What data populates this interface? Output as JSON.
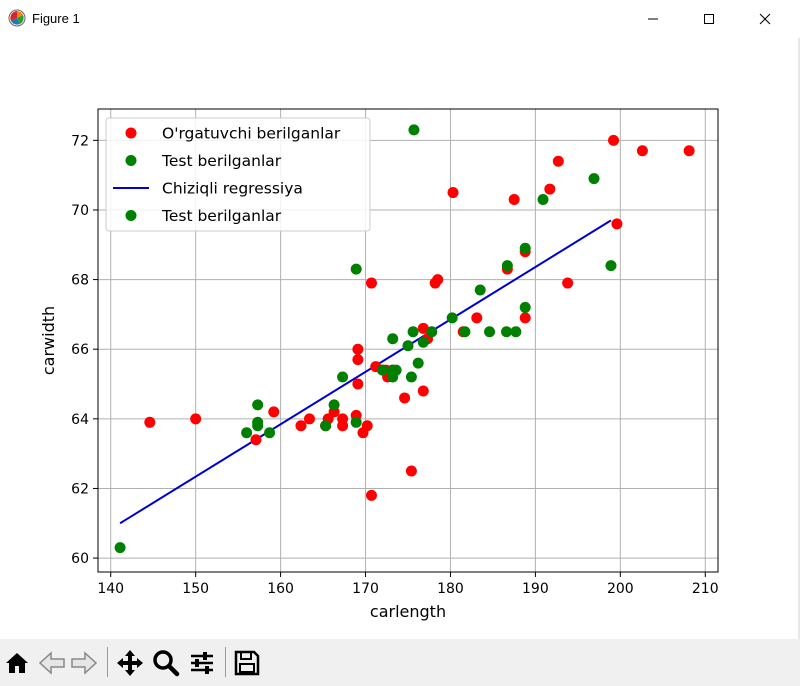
{
  "window": {
    "title": "Figure 1",
    "controls": {
      "minimize": "minimize-icon",
      "maximize": "maximize-icon",
      "close": "close-icon"
    }
  },
  "toolbar": {
    "buttons": [
      "home-icon",
      "back-icon",
      "forward-icon",
      "pan-icon",
      "zoom-icon",
      "configure-subplots-icon",
      "save-icon"
    ]
  },
  "chart_data": {
    "type": "scatter",
    "xlabel": "carlength",
    "ylabel": "carwidth",
    "xlim": [
      138.5,
      211.5
    ],
    "ylim": [
      59.6,
      72.9
    ],
    "xticks": [
      140,
      150,
      160,
      170,
      180,
      190,
      200,
      210
    ],
    "yticks": [
      60,
      62,
      64,
      66,
      68,
      70,
      72
    ],
    "grid": true,
    "legend_position": "top-left",
    "legend": [
      {
        "label": "O'rgatuvchi berilganlar",
        "kind": "marker",
        "color": "#ff0000"
      },
      {
        "label": "Test berilganlar",
        "kind": "marker",
        "color": "#008000"
      },
      {
        "label": "Chiziqli regressiya",
        "kind": "line",
        "color": "#0000cd"
      },
      {
        "label": "Test berilganlar",
        "kind": "marker",
        "color": "#008000"
      }
    ],
    "series": [
      {
        "name": "O'rgatuvchi berilganlar",
        "color": "#ff0000",
        "points": [
          [
            144.6,
            63.9
          ],
          [
            150.0,
            64.0
          ],
          [
            157.1,
            63.4
          ],
          [
            159.2,
            64.2
          ],
          [
            162.4,
            63.8
          ],
          [
            163.4,
            64.0
          ],
          [
            165.3,
            63.8
          ],
          [
            165.6,
            64.0
          ],
          [
            166.3,
            64.2
          ],
          [
            167.3,
            64.0
          ],
          [
            167.3,
            63.8
          ],
          [
            168.9,
            64.1
          ],
          [
            169.1,
            65.0
          ],
          [
            169.1,
            65.7
          ],
          [
            169.1,
            66.0
          ],
          [
            169.7,
            63.6
          ],
          [
            170.2,
            63.8
          ],
          [
            170.7,
            61.8
          ],
          [
            170.7,
            67.9
          ],
          [
            171.2,
            65.5
          ],
          [
            172.0,
            65.4
          ],
          [
            172.4,
            65.4
          ],
          [
            172.6,
            65.2
          ],
          [
            173.2,
            65.4
          ],
          [
            174.6,
            64.6
          ],
          [
            175.4,
            62.5
          ],
          [
            176.8,
            66.6
          ],
          [
            176.8,
            64.8
          ],
          [
            177.3,
            66.3
          ],
          [
            178.2,
            67.9
          ],
          [
            178.5,
            68.0
          ],
          [
            180.3,
            70.5
          ],
          [
            181.5,
            66.5
          ],
          [
            183.1,
            66.9
          ],
          [
            186.7,
            68.3
          ],
          [
            187.5,
            70.3
          ],
          [
            188.8,
            68.8
          ],
          [
            188.8,
            66.9
          ],
          [
            191.7,
            70.6
          ],
          [
            192.7,
            71.4
          ],
          [
            193.8,
            67.9
          ],
          [
            199.2,
            72.0
          ],
          [
            199.6,
            69.6
          ],
          [
            202.6,
            71.7
          ],
          [
            208.1,
            71.7
          ]
        ]
      },
      {
        "name": "Test berilganlar",
        "color": "#008000",
        "points": [
          [
            141.1,
            60.3
          ],
          [
            156.0,
            63.6
          ],
          [
            157.3,
            63.8
          ],
          [
            157.3,
            64.4
          ],
          [
            157.3,
            63.9
          ],
          [
            158.7,
            63.6
          ],
          [
            165.3,
            63.8
          ],
          [
            166.3,
            64.4
          ],
          [
            167.3,
            65.2
          ],
          [
            168.9,
            63.9
          ],
          [
            168.9,
            68.3
          ],
          [
            172.0,
            65.4
          ],
          [
            173.2,
            65.4
          ],
          [
            173.2,
            65.2
          ],
          [
            173.2,
            66.3
          ],
          [
            173.6,
            65.4
          ],
          [
            175.0,
            66.1
          ],
          [
            175.4,
            65.2
          ],
          [
            175.6,
            66.5
          ],
          [
            175.7,
            72.3
          ],
          [
            176.2,
            65.6
          ],
          [
            176.8,
            66.2
          ],
          [
            177.8,
            66.5
          ],
          [
            180.2,
            66.9
          ],
          [
            181.7,
            66.5
          ],
          [
            183.5,
            67.7
          ],
          [
            184.6,
            66.5
          ],
          [
            186.6,
            66.5
          ],
          [
            186.7,
            68.4
          ],
          [
            187.7,
            66.5
          ],
          [
            188.8,
            67.2
          ],
          [
            188.8,
            68.9
          ],
          [
            190.9,
            70.3
          ],
          [
            196.9,
            70.9
          ],
          [
            198.9,
            68.4
          ]
        ]
      }
    ],
    "regression_line": {
      "name": "Chiziqli regressiya",
      "color": "#0000cd",
      "points": [
        [
          141.1,
          61.0
        ],
        [
          198.9,
          69.7
        ]
      ]
    }
  }
}
